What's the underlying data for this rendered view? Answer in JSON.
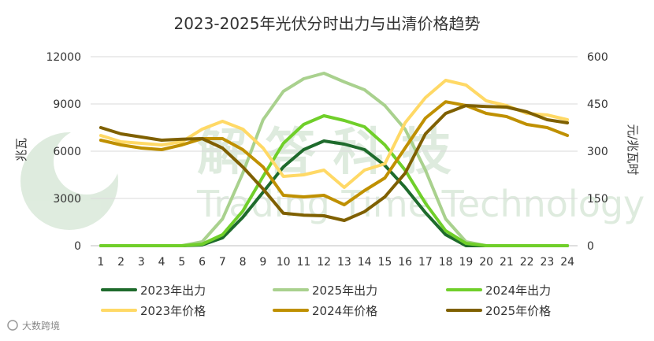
{
  "watermark": {
    "cn": "解 答 科 技",
    "en": "Trading Time Technology"
  },
  "footer_mark": "大数跨境",
  "chart_data": {
    "type": "line",
    "title": "2023-2025年光伏分时出力与出清价格趋势",
    "xlabel": "",
    "ylabel_left": "兆瓦",
    "ylabel_right": "元/兆瓦时",
    "categories": [
      "1",
      "2",
      "3",
      "4",
      "5",
      "6",
      "7",
      "8",
      "9",
      "10",
      "11",
      "12",
      "13",
      "14",
      "15",
      "16",
      "17",
      "18",
      "19",
      "20",
      "21",
      "22",
      "23",
      "24"
    ],
    "y_left": {
      "lim": [
        0,
        12000
      ],
      "ticks": [
        "0",
        "3000",
        "6000",
        "9000",
        "12000"
      ]
    },
    "y_right": {
      "lim": [
        0,
        600
      ],
      "ticks": [
        "0",
        "150",
        "300",
        "450",
        "600"
      ]
    },
    "grid": true,
    "legend_position": "bottom",
    "series": [
      {
        "name": "2023年出力",
        "axis": "left",
        "color": "#1e6b2c",
        "width": 4,
        "values": [
          0,
          0,
          0,
          0,
          0,
          50,
          500,
          1800,
          3400,
          5000,
          6100,
          6650,
          6450,
          6100,
          5100,
          3700,
          2100,
          700,
          0,
          0,
          0,
          0,
          0,
          0
        ]
      },
      {
        "name": "2025年出力",
        "axis": "left",
        "color": "#a9d18e",
        "width": 4,
        "values": [
          0,
          0,
          0,
          0,
          0,
          250,
          1700,
          4600,
          8000,
          9800,
          10600,
          10950,
          10400,
          9900,
          8900,
          7400,
          4800,
          1700,
          250,
          0,
          0,
          0,
          0,
          0
        ]
      },
      {
        "name": "2024年出力",
        "axis": "left",
        "color": "#70cf2a",
        "width": 4,
        "values": [
          0,
          0,
          0,
          0,
          0,
          100,
          700,
          2200,
          4400,
          6500,
          7700,
          8250,
          7950,
          7550,
          6400,
          4800,
          2700,
          950,
          150,
          0,
          0,
          0,
          0,
          0
        ]
      },
      {
        "name": "2023年价格",
        "axis": "right",
        "color": "#ffd966",
        "width": 4,
        "values": [
          350,
          330,
          325,
          320,
          330,
          370,
          395,
          370,
          310,
          220,
          225,
          240,
          185,
          240,
          260,
          390,
          470,
          525,
          510,
          460,
          445,
          420,
          415,
          400
        ]
      },
      {
        "name": "2024年价格",
        "axis": "right",
        "color": "#bf9000",
        "width": 4,
        "values": [
          335,
          320,
          310,
          305,
          320,
          340,
          340,
          305,
          250,
          160,
          155,
          160,
          130,
          175,
          215,
          310,
          405,
          457,
          445,
          420,
          410,
          385,
          375,
          350
        ]
      },
      {
        "name": "2025年价格",
        "axis": "right",
        "color": "#7f6000",
        "width": 4,
        "values": [
          375,
          355,
          345,
          335,
          338,
          340,
          310,
          250,
          180,
          103,
          97,
          95,
          80,
          108,
          155,
          230,
          355,
          420,
          445,
          442,
          440,
          425,
          400,
          390
        ]
      }
    ]
  }
}
